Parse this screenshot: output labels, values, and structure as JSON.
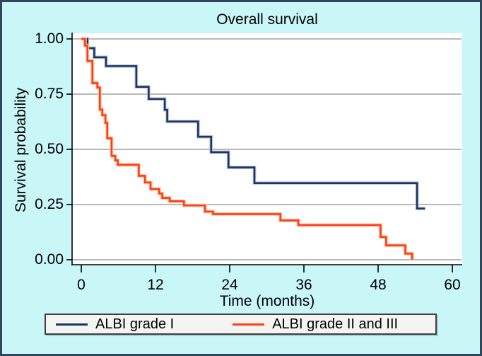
{
  "figure": {
    "background_color": "#c9f6f7",
    "border_color": "#33455c",
    "plot_background_color": "#ffffff",
    "gridline_color": "#8f8f8f",
    "axis_color": "#000000",
    "legend_background_color": "#f4f5f3",
    "legend_border_color": "#3f3f3f"
  },
  "chart_data": {
    "type": "line",
    "subtype": "kaplan_meier_step_survival",
    "title": "Overall survival",
    "xlabel": "Time (months)",
    "ylabel": "Survival probability",
    "xlim": [
      0,
      61.5
    ],
    "ylim": [
      0,
      1.0
    ],
    "grid": "horizontal-only",
    "legend_position": "bottom-outside",
    "x_ticks": [
      {
        "value": 0,
        "label": "0"
      },
      {
        "value": 12,
        "label": "12"
      },
      {
        "value": 24,
        "label": "24"
      },
      {
        "value": 36,
        "label": "36"
      },
      {
        "value": 48,
        "label": "48"
      },
      {
        "value": 60,
        "label": "60"
      }
    ],
    "y_ticks": [
      {
        "value": 1.0,
        "label": "1.00"
      },
      {
        "value": 0.75,
        "label": "0.75"
      },
      {
        "value": 0.5,
        "label": "0.50"
      },
      {
        "value": 0.25,
        "label": "0.25"
      },
      {
        "value": 0.0,
        "label": "0.00"
      }
    ],
    "series": [
      {
        "name": "ALBI grade I",
        "color": "#1a3560",
        "halo_color": "#c3cde0",
        "end_time": 55.6,
        "points": [
          [
            0,
            1.0
          ],
          [
            1.0,
            0.958
          ],
          [
            2.1,
            0.917
          ],
          [
            4.0,
            0.877
          ],
          [
            8.9,
            0.783
          ],
          [
            10.9,
            0.728
          ],
          [
            13.5,
            0.679
          ],
          [
            13.9,
            0.626
          ],
          [
            18.9,
            0.557
          ],
          [
            21.0,
            0.487
          ],
          [
            23.8,
            0.418
          ],
          [
            28.0,
            0.347
          ],
          [
            54.3,
            0.232
          ]
        ]
      },
      {
        "name": "ALBI grade II and III",
        "color": "#ff3e12",
        "halo_color": "#ffc9b3",
        "end_time": 53.5,
        "points": [
          [
            0,
            1.0
          ],
          [
            0.6,
            0.97
          ],
          [
            1.0,
            0.9
          ],
          [
            1.8,
            0.8
          ],
          [
            2.6,
            0.78
          ],
          [
            3.0,
            0.68
          ],
          [
            3.4,
            0.655
          ],
          [
            3.9,
            0.62
          ],
          [
            4.2,
            0.55
          ],
          [
            4.9,
            0.47
          ],
          [
            5.5,
            0.45
          ],
          [
            5.9,
            0.43
          ],
          [
            9.3,
            0.38
          ],
          [
            10.3,
            0.35
          ],
          [
            11.2,
            0.32
          ],
          [
            12.6,
            0.3
          ],
          [
            13.1,
            0.28
          ],
          [
            14.3,
            0.265
          ],
          [
            16.6,
            0.246
          ],
          [
            20.0,
            0.218
          ],
          [
            21.3,
            0.207
          ],
          [
            32.2,
            0.178
          ],
          [
            35.1,
            0.157
          ],
          [
            48.4,
            0.103
          ],
          [
            49.3,
            0.065
          ],
          [
            52.4,
            0.028
          ],
          [
            53.5,
            0.0
          ]
        ]
      }
    ]
  },
  "legend": {
    "items": [
      {
        "label": "ALBI grade I"
      },
      {
        "label": "ALBI grade II and III"
      }
    ]
  }
}
